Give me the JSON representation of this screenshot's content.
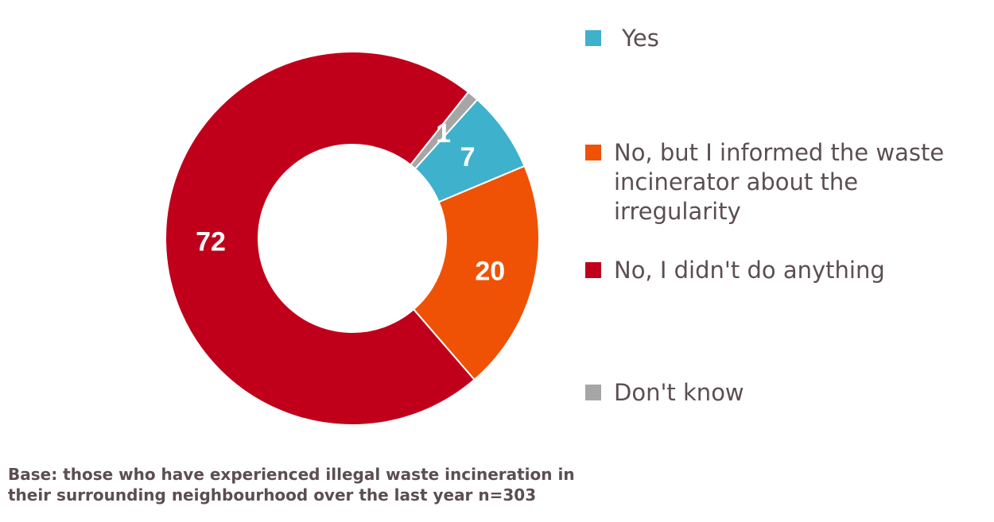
{
  "chart_data": {
    "type": "pie",
    "donut": true,
    "categories": [
      "Yes",
      "No, but I informed the waste incinerator about the irregularity",
      "No, I didn't do anything",
      "Don't know"
    ],
    "values": [
      7,
      20,
      72,
      1
    ],
    "labels": [
      "7",
      "20",
      "72",
      "1"
    ],
    "colors": [
      "#3eb1cd",
      "#ef5205",
      "#c0001b",
      "#a6a6a6"
    ],
    "legend_position": "right"
  },
  "legend": [
    {
      "label": "Yes",
      "color": "#3eb1cd"
    },
    {
      "label": "No, but I informed the waste incinerator about the irregularity",
      "color": "#ef5205"
    },
    {
      "label": "No, I didn't do anything",
      "color": "#c0001b"
    },
    {
      "label": "Don't know",
      "color": "#a6a6a6"
    }
  ],
  "base_note": "Base: those who have experienced illegal waste incineration in their surrounding neighbourhood over the last year n=303"
}
